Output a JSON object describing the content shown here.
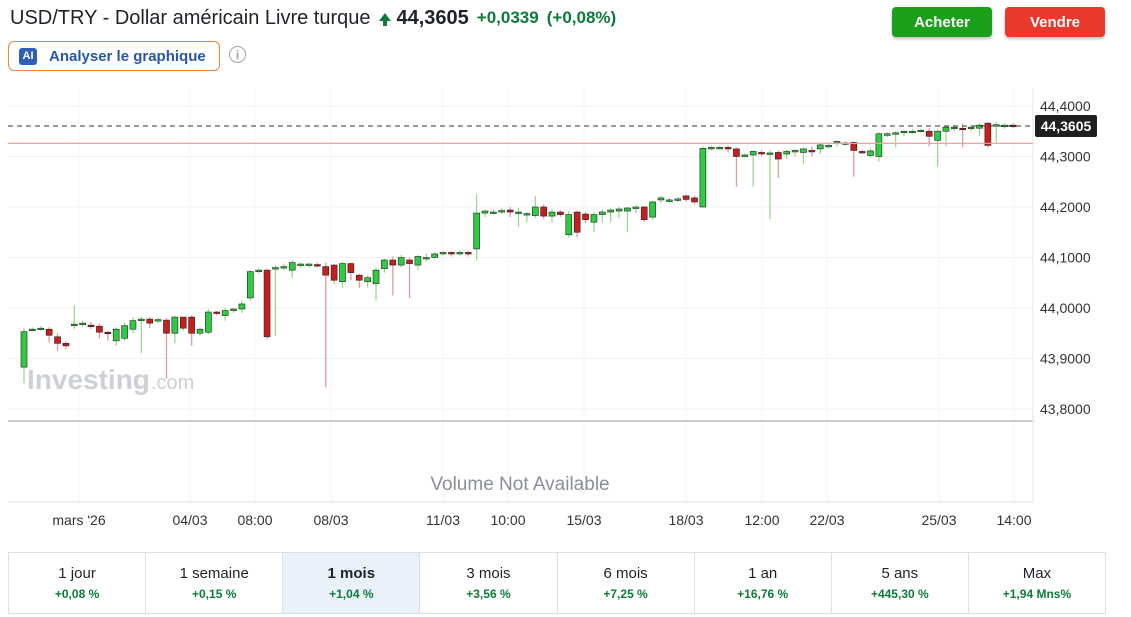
{
  "header": {
    "title": "USD/TRY - Dollar américain Livre turque",
    "price": "44,3605",
    "change": "+0,0339",
    "change_pct": "(+0,08%)",
    "up_color": "#0e7a3a"
  },
  "actions": {
    "buy_label": "Acheter",
    "sell_label": "Vendre",
    "buy_color": "#1aa01a",
    "sell_color": "#e8392b"
  },
  "ai": {
    "badge": "AI",
    "label": "Analyser le graphique"
  },
  "info": {
    "glyph": "i"
  },
  "chart": {
    "watermark_main": "Investing",
    "watermark_suffix": ".com",
    "volume_text": "Volume Not Available",
    "current_price_label": "44,3605",
    "y_ticks": [
      "44,4000",
      "44,3000",
      "44,2000",
      "44,1000",
      "44,0000",
      "43,9000",
      "43,8000"
    ],
    "x_ticks": [
      "mars '26",
      "04/03",
      "08:00",
      "08/03",
      "11/03",
      "10:00",
      "15/03",
      "18/03",
      "12:00",
      "22/03",
      "25/03",
      "14:00"
    ]
  },
  "chart_data": {
    "type": "candlestick",
    "ylim": [
      43.74,
      44.43
    ],
    "up_color": "#2ecc40",
    "down_color": "#c81e1e",
    "last_price": 44.3605,
    "reference_line": 44.326,
    "candles": [
      [
        43.883,
        43.953,
        43.851,
        43.96
      ],
      [
        43.956,
        43.958,
        43.954,
        43.962
      ],
      [
        43.958,
        43.96,
        43.955,
        43.964
      ],
      [
        43.958,
        43.946,
        43.932,
        43.962
      ],
      [
        43.943,
        43.93,
        43.915,
        43.95
      ],
      [
        43.93,
        43.925,
        43.918,
        43.934
      ],
      [
        43.965,
        43.968,
        43.958,
        44.005
      ],
      [
        43.968,
        43.97,
        43.963,
        43.975
      ],
      [
        43.966,
        43.965,
        43.958,
        43.972
      ],
      [
        43.964,
        43.952,
        43.94,
        43.97
      ],
      [
        43.952,
        43.95,
        43.935,
        43.955
      ],
      [
        43.935,
        43.958,
        43.925,
        43.962
      ],
      [
        43.94,
        43.965,
        43.935,
        43.972
      ],
      [
        43.958,
        43.975,
        43.95,
        43.982
      ],
      [
        43.975,
        43.978,
        43.91,
        43.982
      ],
      [
        43.978,
        43.97,
        43.96,
        43.982
      ],
      [
        43.975,
        43.977,
        43.97,
        43.98
      ],
      [
        43.976,
        43.95,
        43.86,
        43.98
      ],
      [
        43.95,
        43.982,
        43.93,
        43.985
      ],
      [
        43.982,
        43.96,
        43.955,
        43.982
      ],
      [
        43.982,
        43.95,
        43.925,
        43.985
      ],
      [
        43.95,
        43.958,
        43.945,
        43.962
      ],
      [
        43.952,
        43.992,
        43.948,
        43.998
      ],
      [
        43.992,
        43.99,
        43.985,
        43.994
      ],
      [
        43.985,
        43.995,
        43.975,
        44.0
      ],
      [
        43.995,
        43.998,
        43.99,
        44.0
      ],
      [
        43.998,
        44.008,
        43.99,
        44.015
      ],
      [
        44.02,
        44.072,
        44.015,
        44.075
      ],
      [
        44.072,
        44.075,
        44.068,
        44.078
      ],
      [
        44.075,
        43.943,
        43.938,
        44.078
      ],
      [
        44.078,
        44.08,
        43.945,
        44.085
      ],
      [
        44.08,
        44.082,
        44.075,
        44.088
      ],
      [
        44.075,
        44.09,
        44.06,
        44.095
      ],
      [
        44.085,
        44.087,
        44.08,
        44.09
      ],
      [
        44.085,
        44.087,
        44.08,
        44.09
      ],
      [
        44.086,
        44.085,
        44.08,
        44.09
      ],
      [
        44.082,
        44.065,
        43.843,
        44.09
      ],
      [
        44.085,
        44.055,
        44.048,
        44.087
      ],
      [
        44.052,
        44.088,
        44.04,
        44.092
      ],
      [
        44.088,
        44.07,
        44.055,
        44.09
      ],
      [
        44.065,
        44.055,
        44.04,
        44.068
      ],
      [
        44.052,
        44.06,
        44.04,
        44.065
      ],
      [
        44.048,
        44.075,
        44.015,
        44.08
      ],
      [
        44.078,
        44.095,
        44.07,
        44.098
      ],
      [
        44.095,
        44.085,
        44.025,
        44.102
      ],
      [
        44.085,
        44.1,
        44.08,
        44.105
      ],
      [
        44.095,
        44.088,
        44.02,
        44.1
      ],
      [
        44.085,
        44.102,
        44.075,
        44.105
      ],
      [
        44.1,
        44.1,
        44.092,
        44.108
      ],
      [
        44.1,
        44.107,
        44.098,
        44.11
      ],
      [
        44.108,
        44.11,
        44.104,
        44.112
      ],
      [
        44.11,
        44.108,
        44.102,
        44.112
      ],
      [
        44.11,
        44.11,
        44.104,
        44.114
      ],
      [
        44.11,
        44.108,
        44.102,
        44.113
      ],
      [
        44.117,
        44.188,
        44.094,
        44.225
      ],
      [
        44.188,
        44.192,
        44.18,
        44.195
      ],
      [
        44.19,
        44.19,
        44.185,
        44.195
      ],
      [
        44.192,
        44.193,
        44.186,
        44.198
      ],
      [
        44.194,
        44.19,
        44.18,
        44.2
      ],
      [
        44.187,
        44.19,
        44.16,
        44.198
      ],
      [
        44.185,
        44.187,
        44.17,
        44.19
      ],
      [
        44.183,
        44.2,
        44.178,
        44.222
      ],
      [
        44.2,
        44.182,
        44.176,
        44.205
      ],
      [
        44.182,
        44.19,
        44.17,
        44.196
      ],
      [
        44.19,
        44.185,
        44.18,
        44.194
      ],
      [
        44.145,
        44.185,
        44.14,
        44.192
      ],
      [
        44.19,
        44.15,
        44.14,
        44.193
      ],
      [
        44.186,
        44.175,
        44.168,
        44.19
      ],
      [
        44.17,
        44.185,
        44.15,
        44.19
      ],
      [
        44.185,
        44.19,
        44.17,
        44.195
      ],
      [
        44.19,
        44.194,
        44.17,
        44.198
      ],
      [
        44.192,
        44.196,
        44.178,
        44.2
      ],
      [
        44.192,
        44.198,
        44.15,
        44.2
      ],
      [
        44.198,
        44.2,
        44.188,
        44.203
      ],
      [
        44.2,
        44.175,
        44.17,
        44.202
      ],
      [
        44.18,
        44.21,
        44.175,
        44.213
      ],
      [
        44.214,
        44.218,
        44.208,
        44.222
      ],
      [
        44.212,
        44.214,
        44.208,
        44.218
      ],
      [
        44.214,
        44.216,
        44.21,
        44.22
      ],
      [
        44.222,
        44.215,
        44.21,
        44.224
      ],
      [
        44.218,
        44.21,
        44.205,
        44.222
      ],
      [
        44.2,
        44.316,
        44.2,
        44.32
      ],
      [
        44.316,
        44.318,
        44.312,
        44.322
      ],
      [
        44.317,
        44.318,
        44.314,
        44.321
      ],
      [
        44.318,
        44.315,
        44.308,
        44.322
      ],
      [
        44.315,
        44.3,
        44.24,
        44.318
      ],
      [
        44.3,
        44.303,
        44.298,
        44.306
      ],
      [
        44.303,
        44.31,
        44.24,
        44.312
      ],
      [
        44.308,
        44.305,
        44.3,
        44.312
      ],
      [
        44.305,
        44.307,
        44.176,
        44.312
      ],
      [
        44.308,
        44.295,
        44.258,
        44.312
      ],
      [
        44.305,
        44.31,
        44.295,
        44.314
      ],
      [
        44.31,
        44.312,
        44.3,
        44.315
      ],
      [
        44.308,
        44.315,
        44.285,
        44.318
      ],
      [
        44.312,
        44.31,
        44.3,
        44.32
      ],
      [
        44.315,
        44.323,
        44.305,
        44.326
      ],
      [
        44.32,
        44.322,
        44.316,
        44.325
      ],
      [
        44.328,
        44.33,
        44.32,
        44.332
      ],
      [
        44.325,
        44.327,
        44.322,
        44.33
      ],
      [
        44.328,
        44.312,
        44.26,
        44.33
      ],
      [
        44.31,
        44.308,
        44.305,
        44.314
      ],
      [
        44.302,
        44.311,
        44.298,
        44.316
      ],
      [
        44.3,
        44.345,
        44.29,
        44.348
      ],
      [
        44.342,
        44.345,
        44.338,
        44.348
      ],
      [
        44.345,
        44.347,
        44.318,
        44.35
      ],
      [
        44.348,
        44.35,
        44.34,
        44.352
      ],
      [
        44.348,
        44.35,
        44.345,
        44.354
      ],
      [
        44.35,
        44.352,
        44.348,
        44.355
      ],
      [
        44.35,
        44.34,
        44.32,
        44.356
      ],
      [
        44.332,
        44.35,
        44.28,
        44.354
      ],
      [
        44.35,
        44.358,
        44.32,
        44.362
      ],
      [
        44.356,
        44.358,
        44.35,
        44.362
      ],
      [
        44.356,
        44.355,
        44.318,
        44.365
      ],
      [
        44.355,
        44.358,
        44.35,
        44.362
      ],
      [
        44.356,
        44.362,
        44.34,
        44.366
      ],
      [
        44.366,
        44.322,
        44.318,
        44.368
      ],
      [
        44.362,
        44.363,
        44.325,
        44.368
      ],
      [
        44.36,
        44.362,
        44.355,
        44.366
      ],
      [
        44.362,
        44.3605,
        44.356,
        44.366
      ]
    ]
  },
  "periods": [
    {
      "label": "1 jour",
      "change": "+0,08 %"
    },
    {
      "label": "1 semaine",
      "change": "+0,15 %"
    },
    {
      "label": "1 mois",
      "change": "+1,04 %"
    },
    {
      "label": "3 mois",
      "change": "+3,56 %"
    },
    {
      "label": "6 mois",
      "change": "+7,25 %"
    },
    {
      "label": "1 an",
      "change": "+16,76 %"
    },
    {
      "label": "5 ans",
      "change": "+445,30 %"
    },
    {
      "label": "Max",
      "change": "+1,94 Mns%"
    }
  ]
}
